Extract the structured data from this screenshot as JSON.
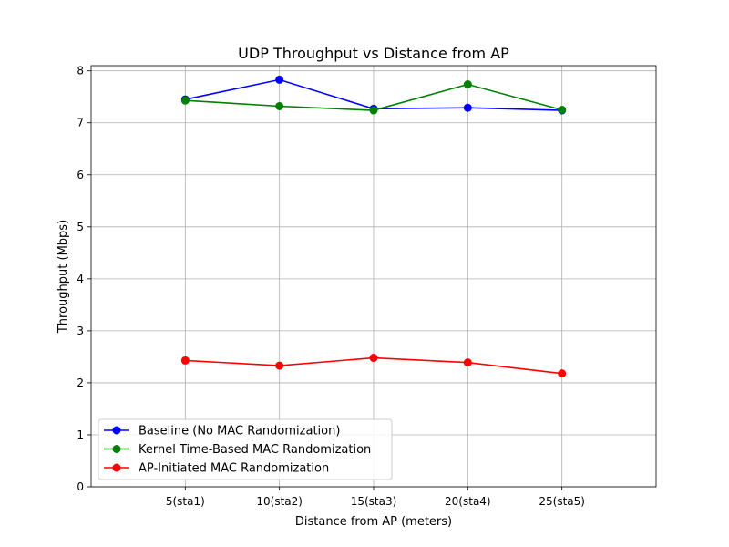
{
  "chart_data": {
    "type": "line",
    "title": "UDP Throughput vs Distance from AP",
    "xlabel": "Distance from AP (meters)",
    "ylabel": "Throughput (Mbps)",
    "categories": [
      "5(sta1)",
      "10(sta2)",
      "15(sta3)",
      "20(sta4)",
      "25(sta5)"
    ],
    "ylim": [
      0,
      8.1
    ],
    "yticks": [
      0,
      1,
      2,
      3,
      4,
      5,
      6,
      7,
      8
    ],
    "grid": true,
    "legend_position": "lower-left",
    "series": [
      {
        "name": "Baseline (No MAC Randomization)",
        "color": "#0000ff",
        "values": [
          7.45,
          7.83,
          7.27,
          7.29,
          7.24
        ]
      },
      {
        "name": "Kernel Time-Based MAC Randomization",
        "color": "#008000",
        "values": [
          7.43,
          7.32,
          7.24,
          7.74,
          7.25
        ]
      },
      {
        "name": "AP-Initiated MAC Randomization",
        "color": "#ff0000",
        "values": [
          2.43,
          2.33,
          2.48,
          2.39,
          2.18
        ]
      }
    ]
  }
}
